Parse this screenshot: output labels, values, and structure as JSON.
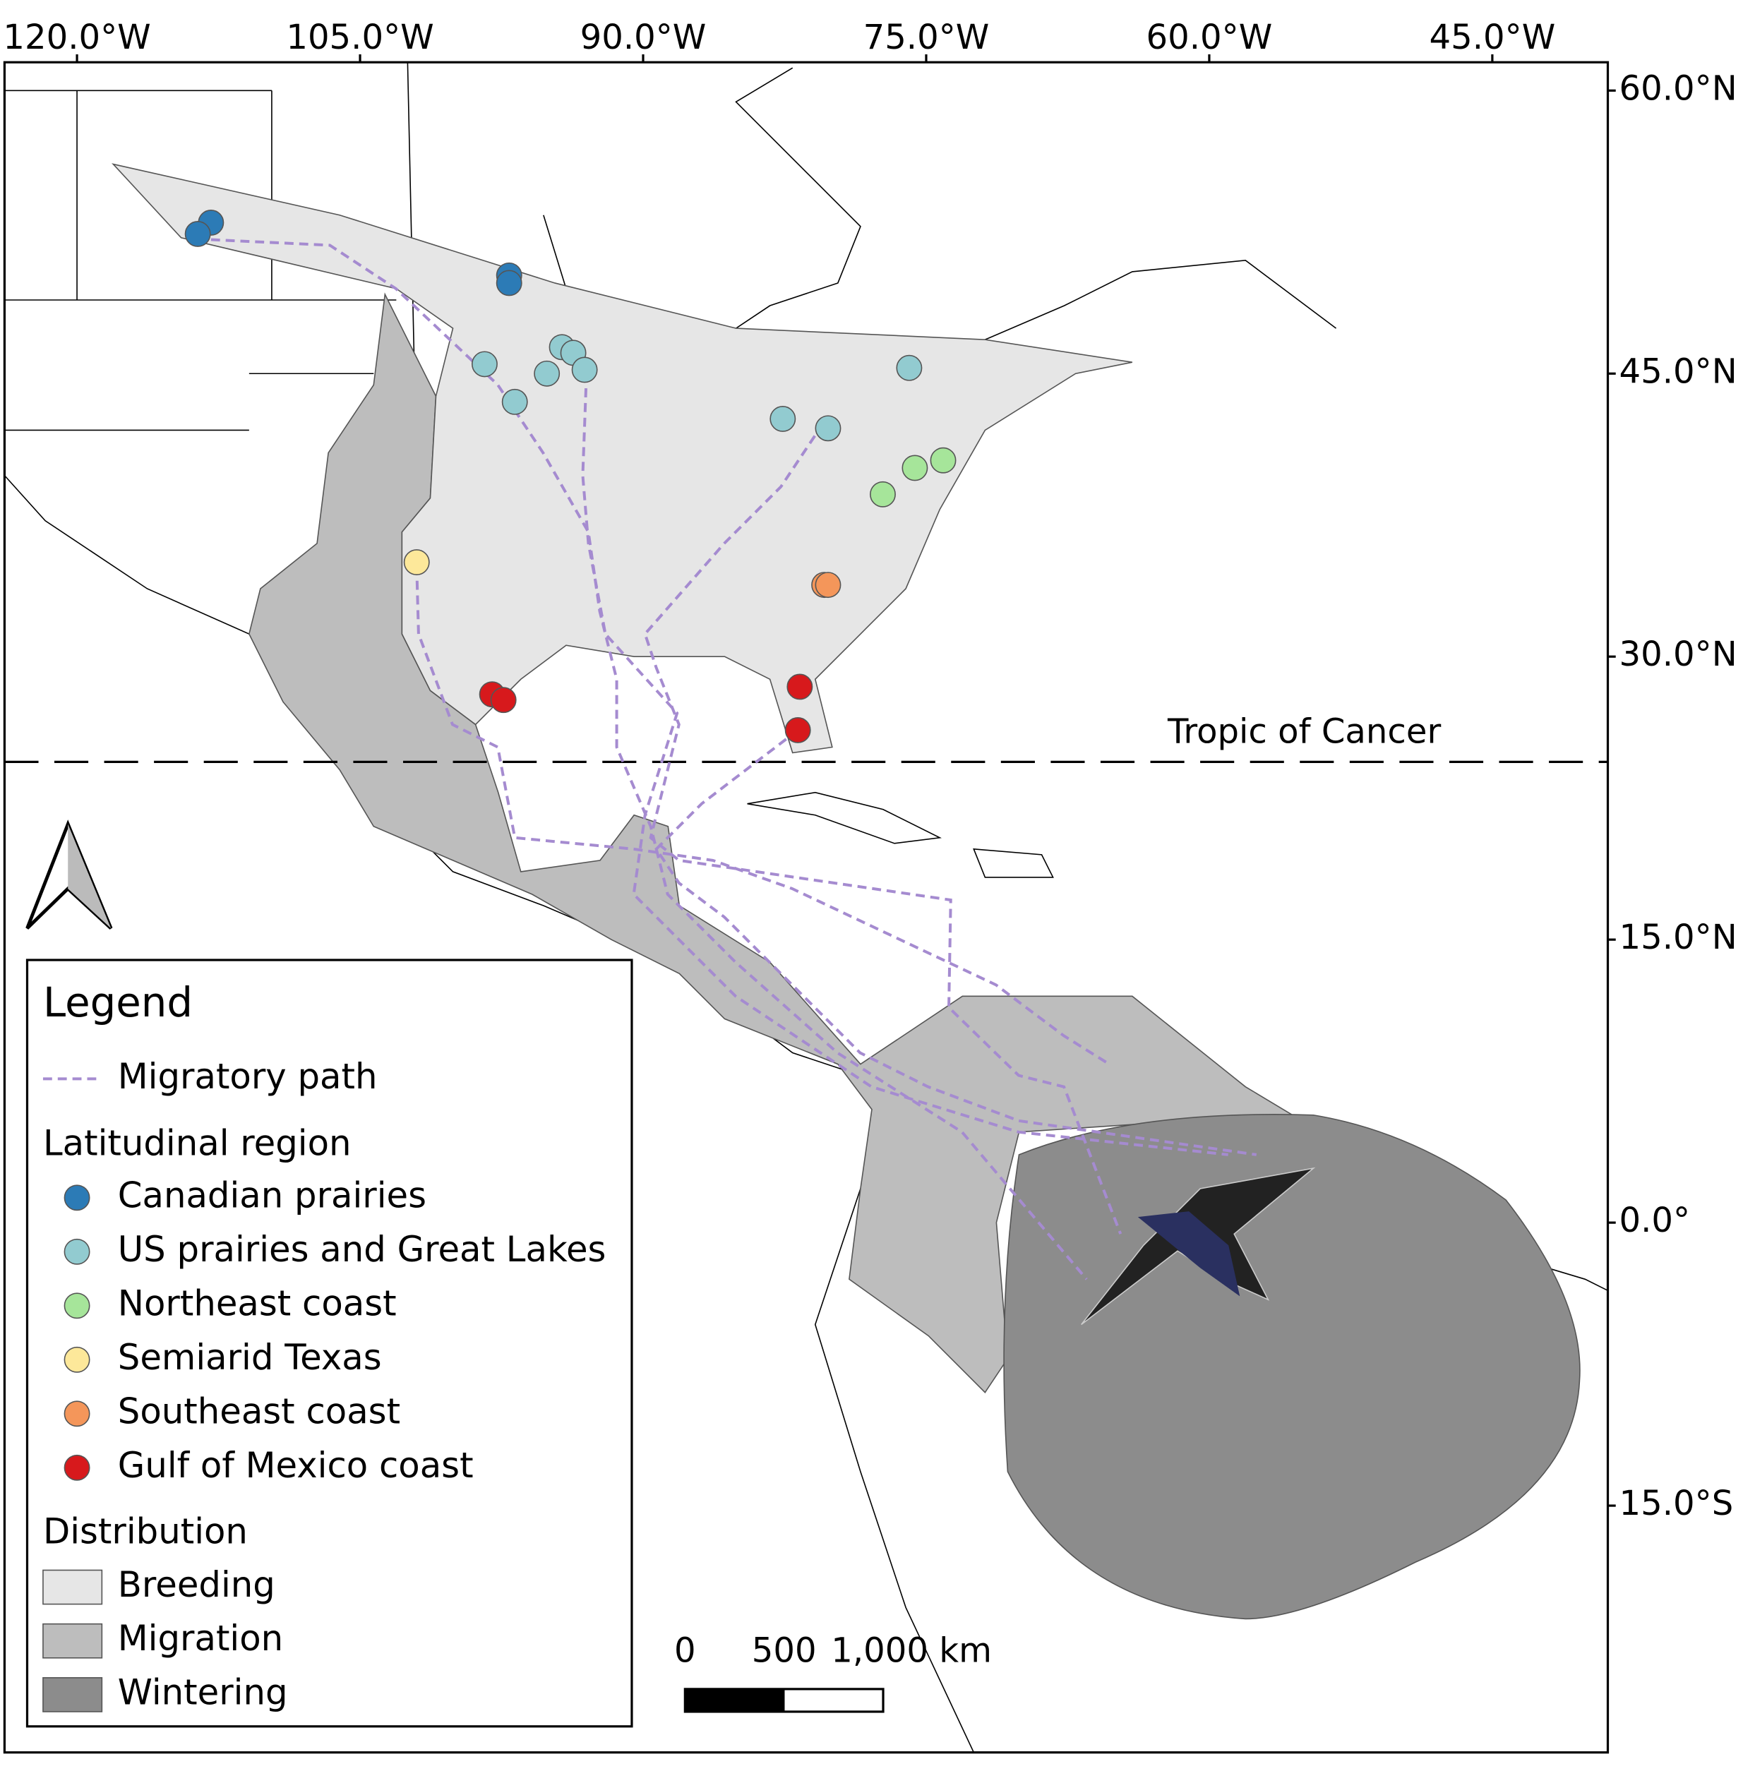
{
  "map": {
    "lon_ticks": [
      {
        "value": -120,
        "label": "120.0°W"
      },
      {
        "value": -105,
        "label": "105.0°W"
      },
      {
        "value": -90,
        "label": "90.0°W"
      },
      {
        "value": -75,
        "label": "75.0°W"
      },
      {
        "value": -60,
        "label": "60.0°W"
      },
      {
        "value": -45,
        "label": "45.0°W"
      }
    ],
    "lat_ticks": [
      {
        "value": 60,
        "label": "60.0°N"
      },
      {
        "value": 45,
        "label": "45.0°N"
      },
      {
        "value": 30,
        "label": "30.0°N"
      },
      {
        "value": 15,
        "label": "15.0°N"
      },
      {
        "value": 0,
        "label": "0.0°"
      },
      {
        "value": -15,
        "label": "15.0°S"
      }
    ],
    "annotation": "Tropic of Cancer",
    "legend": {
      "title": "Legend",
      "path_label": "Migratory path",
      "path_color": "#a58bd0",
      "region_title": "Latitudinal region",
      "distribution_title": "Distribution"
    },
    "regions": [
      {
        "name": "Canadian prairies",
        "color": "#2c7bb6",
        "lon": [
          -112.9,
          -113.6,
          -97.1,
          -97.1
        ],
        "lat": [
          53.0,
          52.4,
          50.2,
          49.8
        ]
      },
      {
        "name": "US prairies and Great Lakes",
        "color": "#92cbd0",
        "lon": [
          -98.4,
          -96.8,
          -95.1,
          -94.3,
          -93.7,
          -93.1,
          -82.6,
          -80.2,
          -75.9
        ],
        "lat": [
          45.5,
          43.5,
          45.0,
          46.4,
          46.1,
          45.2,
          42.6,
          42.1,
          45.3
        ]
      },
      {
        "name": "Northeast coast",
        "color": "#a6e59a",
        "lon": [
          -77.3,
          -75.6,
          -74.1
        ],
        "lat": [
          38.6,
          40.0,
          40.4
        ]
      },
      {
        "name": "Semiarid Texas",
        "color": "#fde89a",
        "lon": [
          -102.0
        ],
        "lat": [
          35.0
        ]
      },
      {
        "name": "Southeast coast",
        "color": "#f4965a",
        "lon": [
          -80.4,
          -80.2
        ],
        "lat": [
          33.8,
          33.8
        ]
      },
      {
        "name": "Gulf of Mexico coast",
        "color": "#d7191c",
        "lon": [
          -98.0,
          -97.4,
          -81.7,
          -81.8
        ],
        "lat": [
          28.0,
          27.7,
          28.4,
          26.1
        ]
      }
    ],
    "distribution": [
      {
        "name": "Breeding",
        "color": "#e6e6e6"
      },
      {
        "name": "Migration",
        "color": "#bdbdbd"
      },
      {
        "name": "Wintering",
        "color": "#8c8c8c"
      }
    ],
    "paths": [
      {
        "lon": [
          -112.9,
          -106.6,
          -103.1,
          -97.7,
          -95.3,
          -92.9,
          -92.3,
          -91.4,
          -91.4,
          -89.6,
          -88.7,
          -85.1,
          -79.7,
          -73.1,
          -66.5
        ],
        "lat": [
          52.1,
          51.8,
          49.5,
          44.4,
          40.8,
          36.6,
          32.4,
          28.8,
          25.2,
          21.0,
          17.4,
          13.8,
          9.0,
          4.8,
          -3.0
        ]
      },
      {
        "lon": [
          -93.0,
          -93.2,
          -92.9,
          -92.0,
          -88.2,
          -89.9,
          -90.5,
          -85.1,
          -77.9,
          -70.1,
          -59.0
        ],
        "lat": [
          45.0,
          39.6,
          36.0,
          31.2,
          27.0,
          21.6,
          17.4,
          12.0,
          7.2,
          4.8,
          3.6
        ]
      },
      {
        "lon": [
          -80.9,
          -82.7,
          -85.7,
          -89.9,
          -89.3,
          -88.1,
          -89.6,
          -88.1,
          -73.7,
          -73.8,
          -70.1,
          -67.7,
          -64.7
        ],
        "lat": [
          41.7,
          39.0,
          36.0,
          31.2,
          29.4,
          26.4,
          20.4,
          19.2,
          17.1,
          11.4,
          7.8,
          7.2,
          -0.6
        ]
      },
      {
        "lon": [
          -102.0,
          -101.9,
          -100.1,
          -97.7,
          -96.8,
          -90.5,
          -86.3,
          -82.1,
          -71.3,
          -67.7,
          -65.3
        ],
        "lat": [
          34.8,
          31.2,
          26.4,
          25.2,
          20.4,
          19.8,
          19.2,
          17.7,
          12.6,
          9.9,
          8.4
        ]
      },
      {
        "lon": [
          -81.8,
          -86.9,
          -89.3,
          -88.1,
          -85.7,
          -83.3,
          -78.5,
          -74.9,
          -70.1,
          -57.5
        ],
        "lat": [
          26.1,
          22.2,
          19.8,
          18.0,
          16.2,
          13.8,
          9.0,
          7.2,
          5.4,
          3.6
        ]
      }
    ],
    "scale_bar": [
      0,
      500,
      {
        "value": 1000,
        "label": "1,000 km"
      }
    ]
  }
}
